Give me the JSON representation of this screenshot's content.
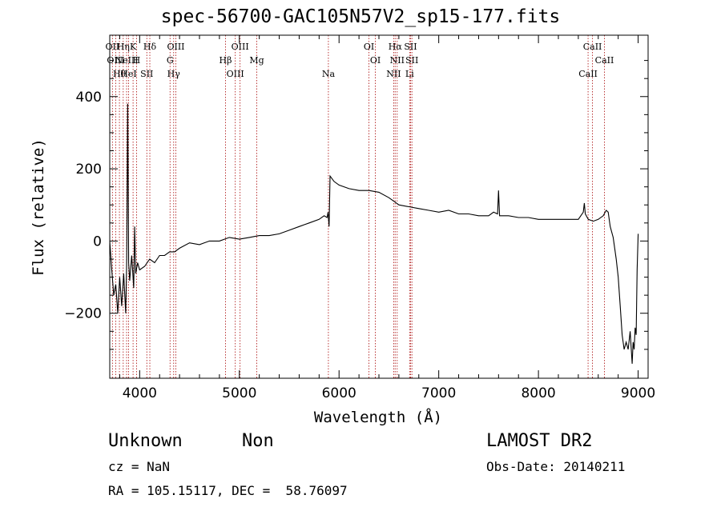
{
  "chart_data": {
    "type": "line",
    "title": "spec-56700-GAC105N57V2_sp15-177.fits",
    "xlabel": "Wavelength (Å)",
    "ylabel": "Flux (relative)",
    "xlim": [
      3700,
      9100
    ],
    "ylim": [
      -380,
      570
    ],
    "x_ticks": [
      4000,
      5000,
      6000,
      7000,
      8000,
      9000
    ],
    "y_ticks": [
      -200,
      0,
      200,
      400
    ],
    "grid": false,
    "series": [
      {
        "x": [
          3700,
          3720,
          3740,
          3760,
          3780,
          3800,
          3820,
          3840,
          3860,
          3870,
          3880,
          3890,
          3900,
          3920,
          3940,
          3950,
          3960,
          3980,
          4000,
          4050,
          4100,
          4150,
          4200,
          4250,
          4300,
          4350,
          4400,
          4500,
          4600,
          4700,
          4800,
          4900,
          5000,
          5100,
          5200,
          5300,
          5400,
          5500,
          5600,
          5700,
          5800,
          5850,
          5880,
          5890,
          5900,
          5910,
          5950,
          6000,
          6100,
          6200,
          6300,
          6400,
          6500,
          6550,
          6600,
          6700,
          6800,
          6900,
          7000,
          7100,
          7200,
          7300,
          7400,
          7500,
          7550,
          7590,
          7600,
          7610,
          7650,
          7700,
          7800,
          7900,
          8000,
          8100,
          8200,
          8300,
          8400,
          8450,
          8460,
          8470,
          8500,
          8550,
          8600,
          8650,
          8680,
          8700,
          8720,
          8750,
          8780,
          8800,
          8820,
          8840,
          8860,
          8880,
          8900,
          8920,
          8940,
          8950,
          8960,
          8970,
          8980,
          8990,
          9000
        ],
        "y": [
          0,
          -80,
          -150,
          -120,
          -200,
          -100,
          -180,
          -90,
          -200,
          -50,
          380,
          -60,
          -110,
          -40,
          -130,
          40,
          -90,
          -60,
          -80,
          -70,
          -50,
          -60,
          -40,
          -40,
          -30,
          -30,
          -20,
          -5,
          -10,
          0,
          0,
          10,
          5,
          10,
          15,
          15,
          20,
          30,
          40,
          50,
          60,
          70,
          65,
          80,
          40,
          180,
          165,
          155,
          145,
          140,
          140,
          135,
          120,
          110,
          100,
          95,
          90,
          85,
          80,
          85,
          75,
          75,
          70,
          70,
          80,
          75,
          140,
          70,
          70,
          70,
          65,
          65,
          60,
          60,
          60,
          60,
          60,
          80,
          105,
          75,
          60,
          55,
          60,
          70,
          85,
          80,
          40,
          10,
          -50,
          -100,
          -180,
          -260,
          -300,
          -280,
          -300,
          -250,
          -340,
          -280,
          -300,
          -240,
          -260,
          -80,
          20
        ]
      }
    ],
    "lines": [
      {
        "wave": 3727,
        "label": "OII"
      },
      {
        "wave": 3760,
        "label": "OIII"
      },
      {
        "wave": 3797,
        "label": "Hθ"
      },
      {
        "wave": 3835,
        "label": "Hη"
      },
      {
        "wave": 3869,
        "label": "NeIII"
      },
      {
        "wave": 3889,
        "label": "HeI"
      },
      {
        "wave": 3934,
        "label": "K"
      },
      {
        "wave": 3969,
        "label": "H"
      },
      {
        "wave": 4072,
        "label": "SII"
      },
      {
        "wave": 4102,
        "label": "Hδ"
      },
      {
        "wave": 4305,
        "label": "G"
      },
      {
        "wave": 4341,
        "label": "Hγ"
      },
      {
        "wave": 4363,
        "label": "OIII"
      },
      {
        "wave": 4861,
        "label": "Hβ"
      },
      {
        "wave": 4959,
        "label": "OIII"
      },
      {
        "wave": 5007,
        "label": "OIII"
      },
      {
        "wave": 5175,
        "label": "Mg"
      },
      {
        "wave": 5893,
        "label": "Na"
      },
      {
        "wave": 6300,
        "label": "OI"
      },
      {
        "wave": 6364,
        "label": "OI"
      },
      {
        "wave": 6548,
        "label": "NII"
      },
      {
        "wave": 6563,
        "label": "Hα"
      },
      {
        "wave": 6583,
        "label": "NII"
      },
      {
        "wave": 6708,
        "label": "Li"
      },
      {
        "wave": 6717,
        "label": "SII"
      },
      {
        "wave": 6731,
        "label": "SII"
      },
      {
        "wave": 8498,
        "label": "CaII"
      },
      {
        "wave": 8542,
        "label": "CaII"
      },
      {
        "wave": 8662,
        "label": "CaII"
      }
    ]
  },
  "info": {
    "class": "Unknown",
    "subclass": "Non",
    "survey": "LAMOST DR2",
    "cz": "cz = NaN",
    "obsdate": "Obs-Date: 20140211",
    "radec": "RA = 105.15117, DEC =  58.76097"
  }
}
